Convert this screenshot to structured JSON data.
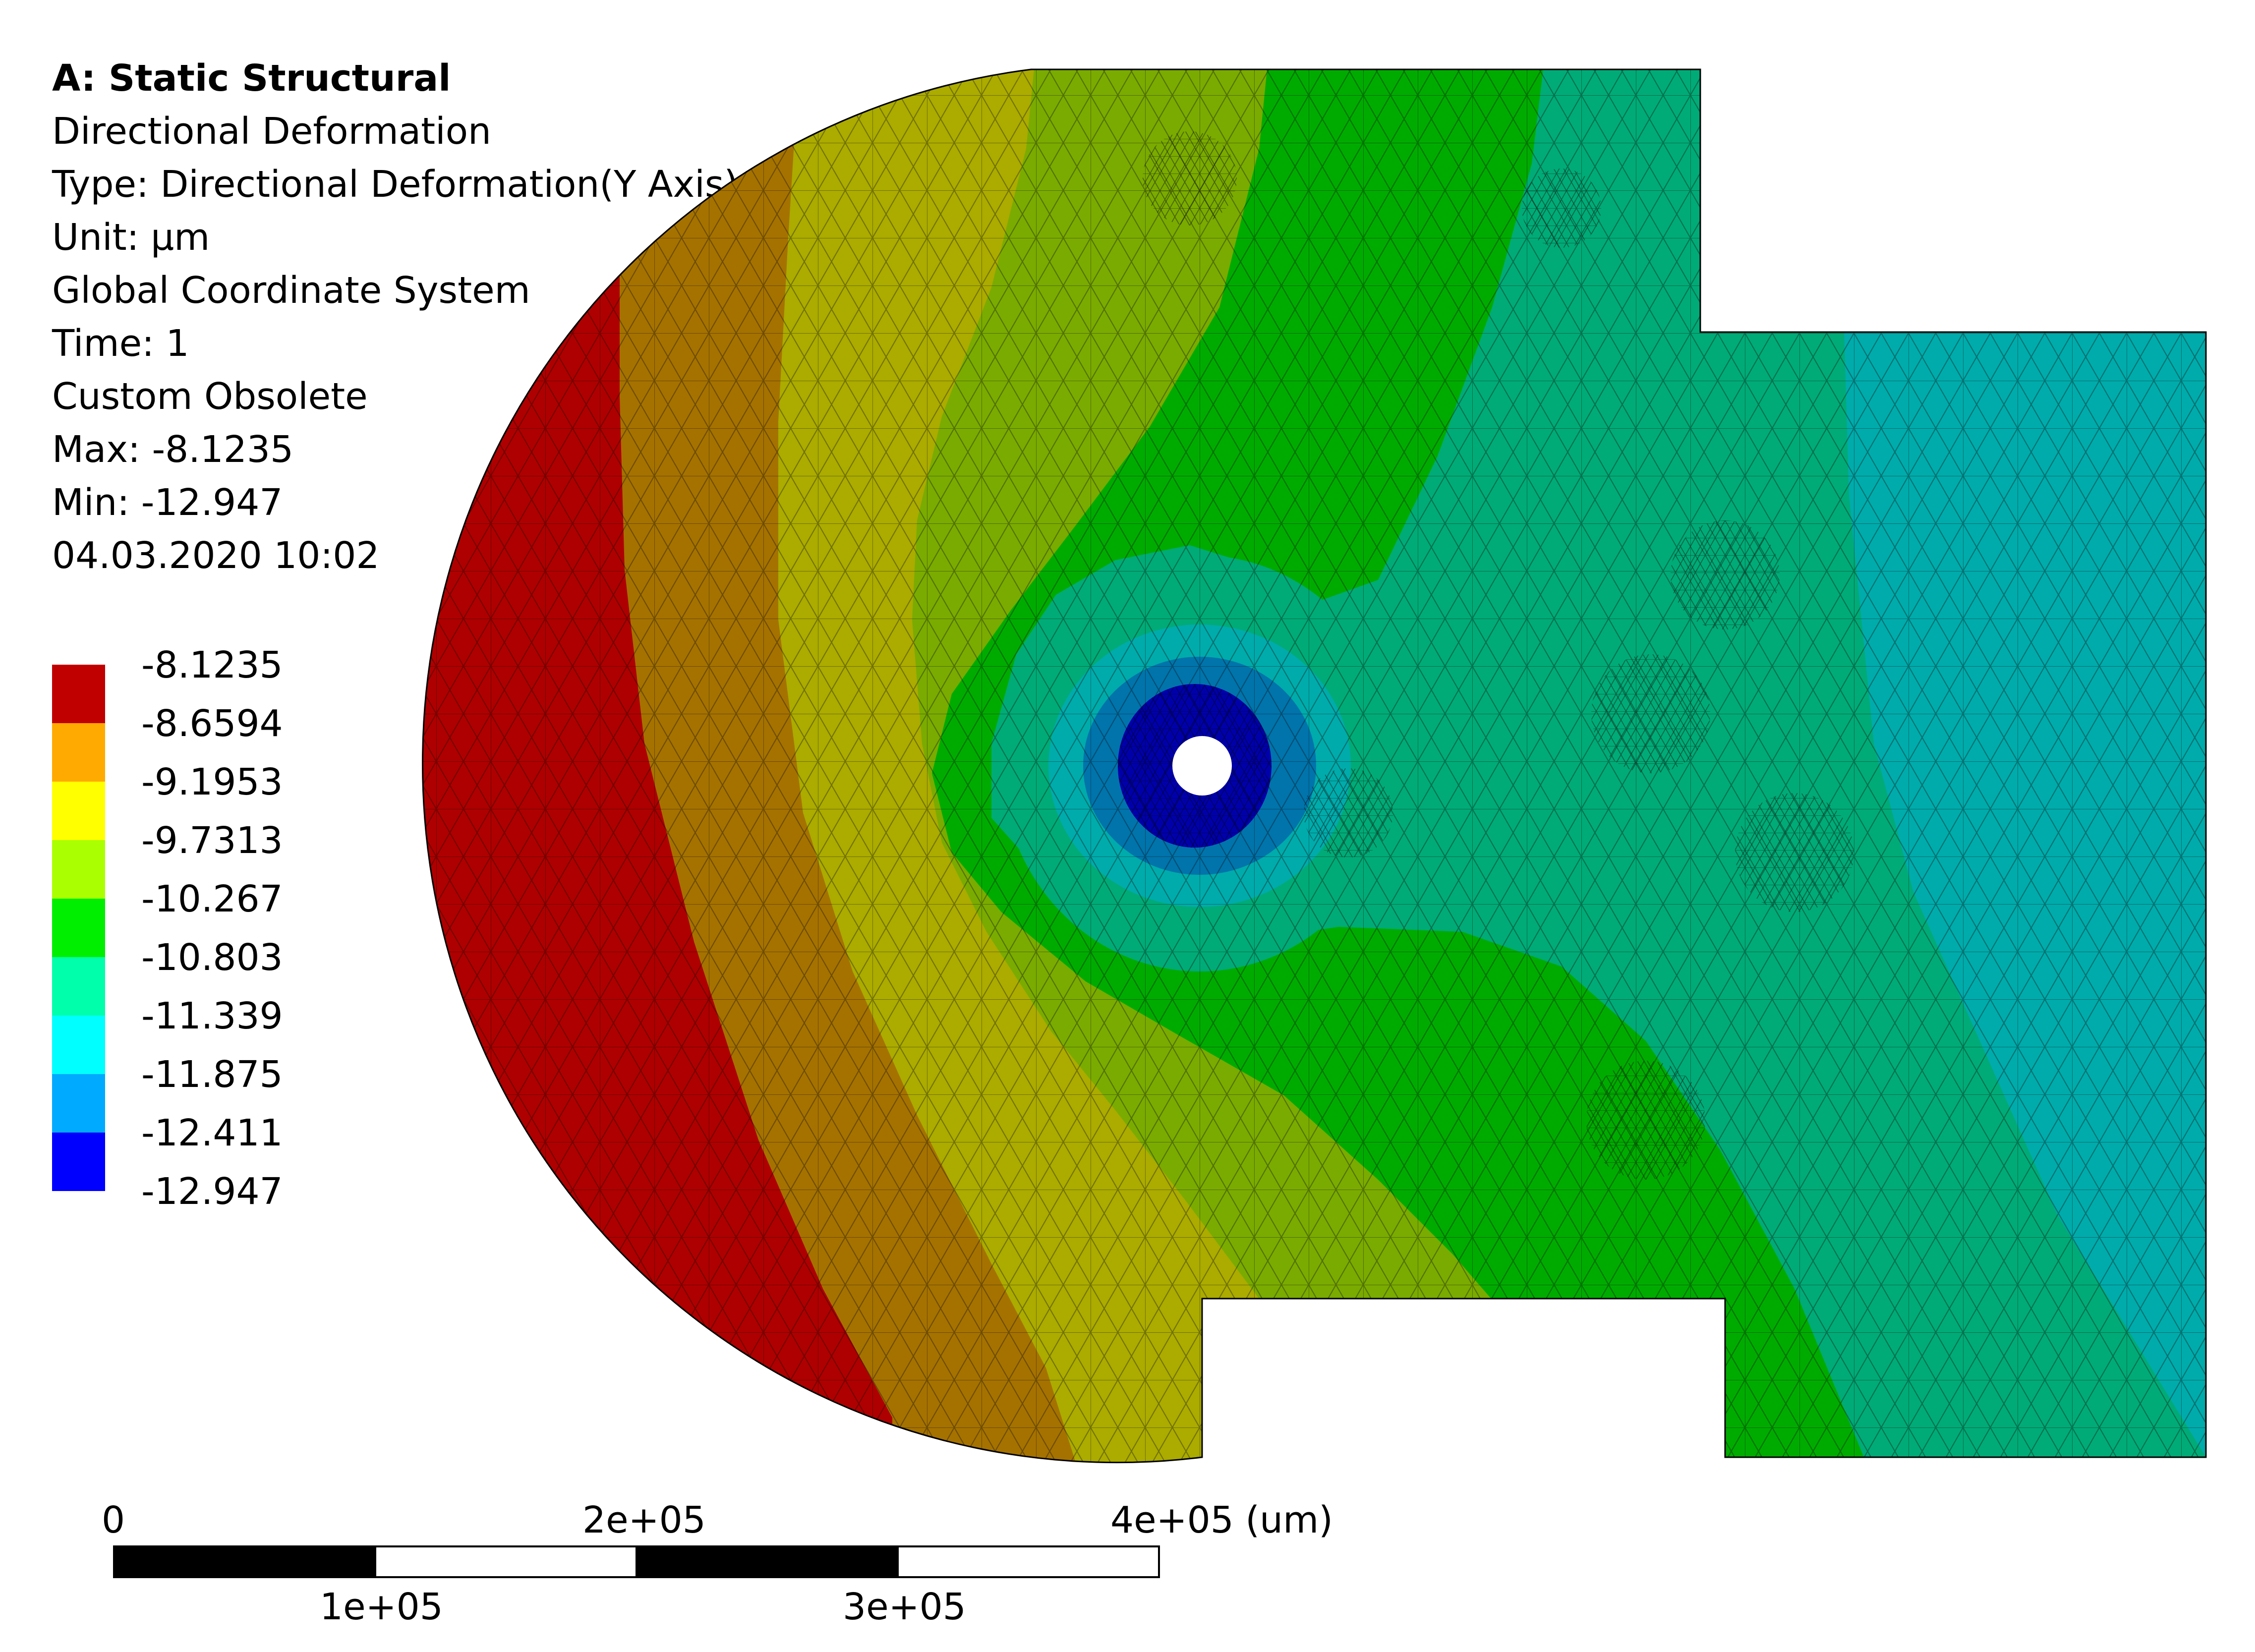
{
  "info": {
    "analysis": "A: Static Structural",
    "result_name": "Directional Deformation",
    "type": "Type: Directional Deformation(Y Axis)",
    "unit": "Unit: µm",
    "coordinate_system": "Global Coordinate System",
    "time": "Time: 1",
    "custom": "Custom Obsolete",
    "max": "Max: -8.1235",
    "min": "Min: -12.947",
    "timestamp": "04.03.2020 10:02"
  },
  "legend": {
    "labels": [
      "-8.1235",
      "-8.6594",
      "-9.1953",
      "-9.7313",
      "-10.267",
      "-10.803",
      "-11.339",
      "-11.875",
      "-12.411",
      "-12.947"
    ],
    "colors": [
      "#c00000",
      "#ffaa00",
      "#ffff00",
      "#aaff00",
      "#00ee00",
      "#00ffaa",
      "#00ffff",
      "#00aaff",
      "#0000ff"
    ]
  },
  "contour_colors": {
    "red": "#ae0000",
    "orange": "#a57200",
    "yellow": "#abab00",
    "yellow_green": "#7aab00",
    "green": "#00ab00",
    "teal": "#00ab77",
    "cyan": "#00abab",
    "light_blue": "#0074ab",
    "blue": "#0000ab"
  },
  "scale_bar": {
    "top_labels": [
      "0",
      "2e+05",
      "4e+05 (um)"
    ],
    "bottom_labels": [
      "1e+05",
      "3e+05"
    ]
  }
}
